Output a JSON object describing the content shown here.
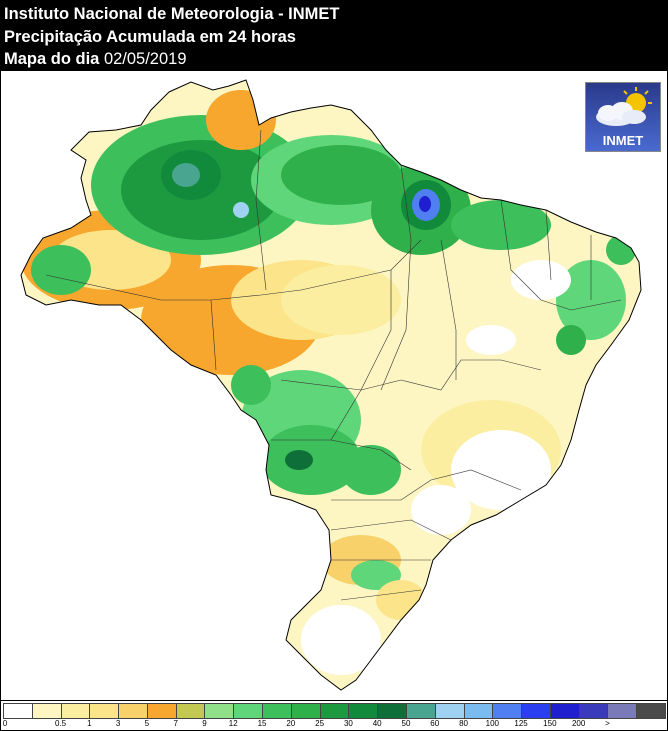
{
  "header": {
    "line1": "Instituto Nacional de Meteorologia - INMET",
    "line2": "Precipitação Acumulada em 24 horas",
    "line3_label": "Mapa do dia",
    "line3_date": "02/05/2019"
  },
  "logo": {
    "text": "INMET",
    "icon": "sun-cloud-icon"
  },
  "legend": {
    "colors": [
      "#ffffff",
      "#fdf6c3",
      "#fbeea0",
      "#fbe48a",
      "#f9d16b",
      "#f8a72e",
      "#c3c852",
      "#90e08a",
      "#5fd67a",
      "#3dbf5c",
      "#2fb04a",
      "#1d9a40",
      "#118a3c",
      "#0f6f38",
      "#4aa590",
      "#9fd2f0",
      "#7bbcf0",
      "#4f7ff0",
      "#2b3ef0",
      "#1f1fd0",
      "#3a3abc",
      "#7a7ab8",
      "#4a4a4a"
    ],
    "ticks": [
      "0",
      "0.5",
      "1",
      "3",
      "5",
      "7",
      "9",
      "12",
      "15",
      "20",
      "25",
      "30",
      "40",
      "50",
      "60",
      "80",
      "100",
      "125",
      "150",
      "200",
      ">"
    ]
  }
}
